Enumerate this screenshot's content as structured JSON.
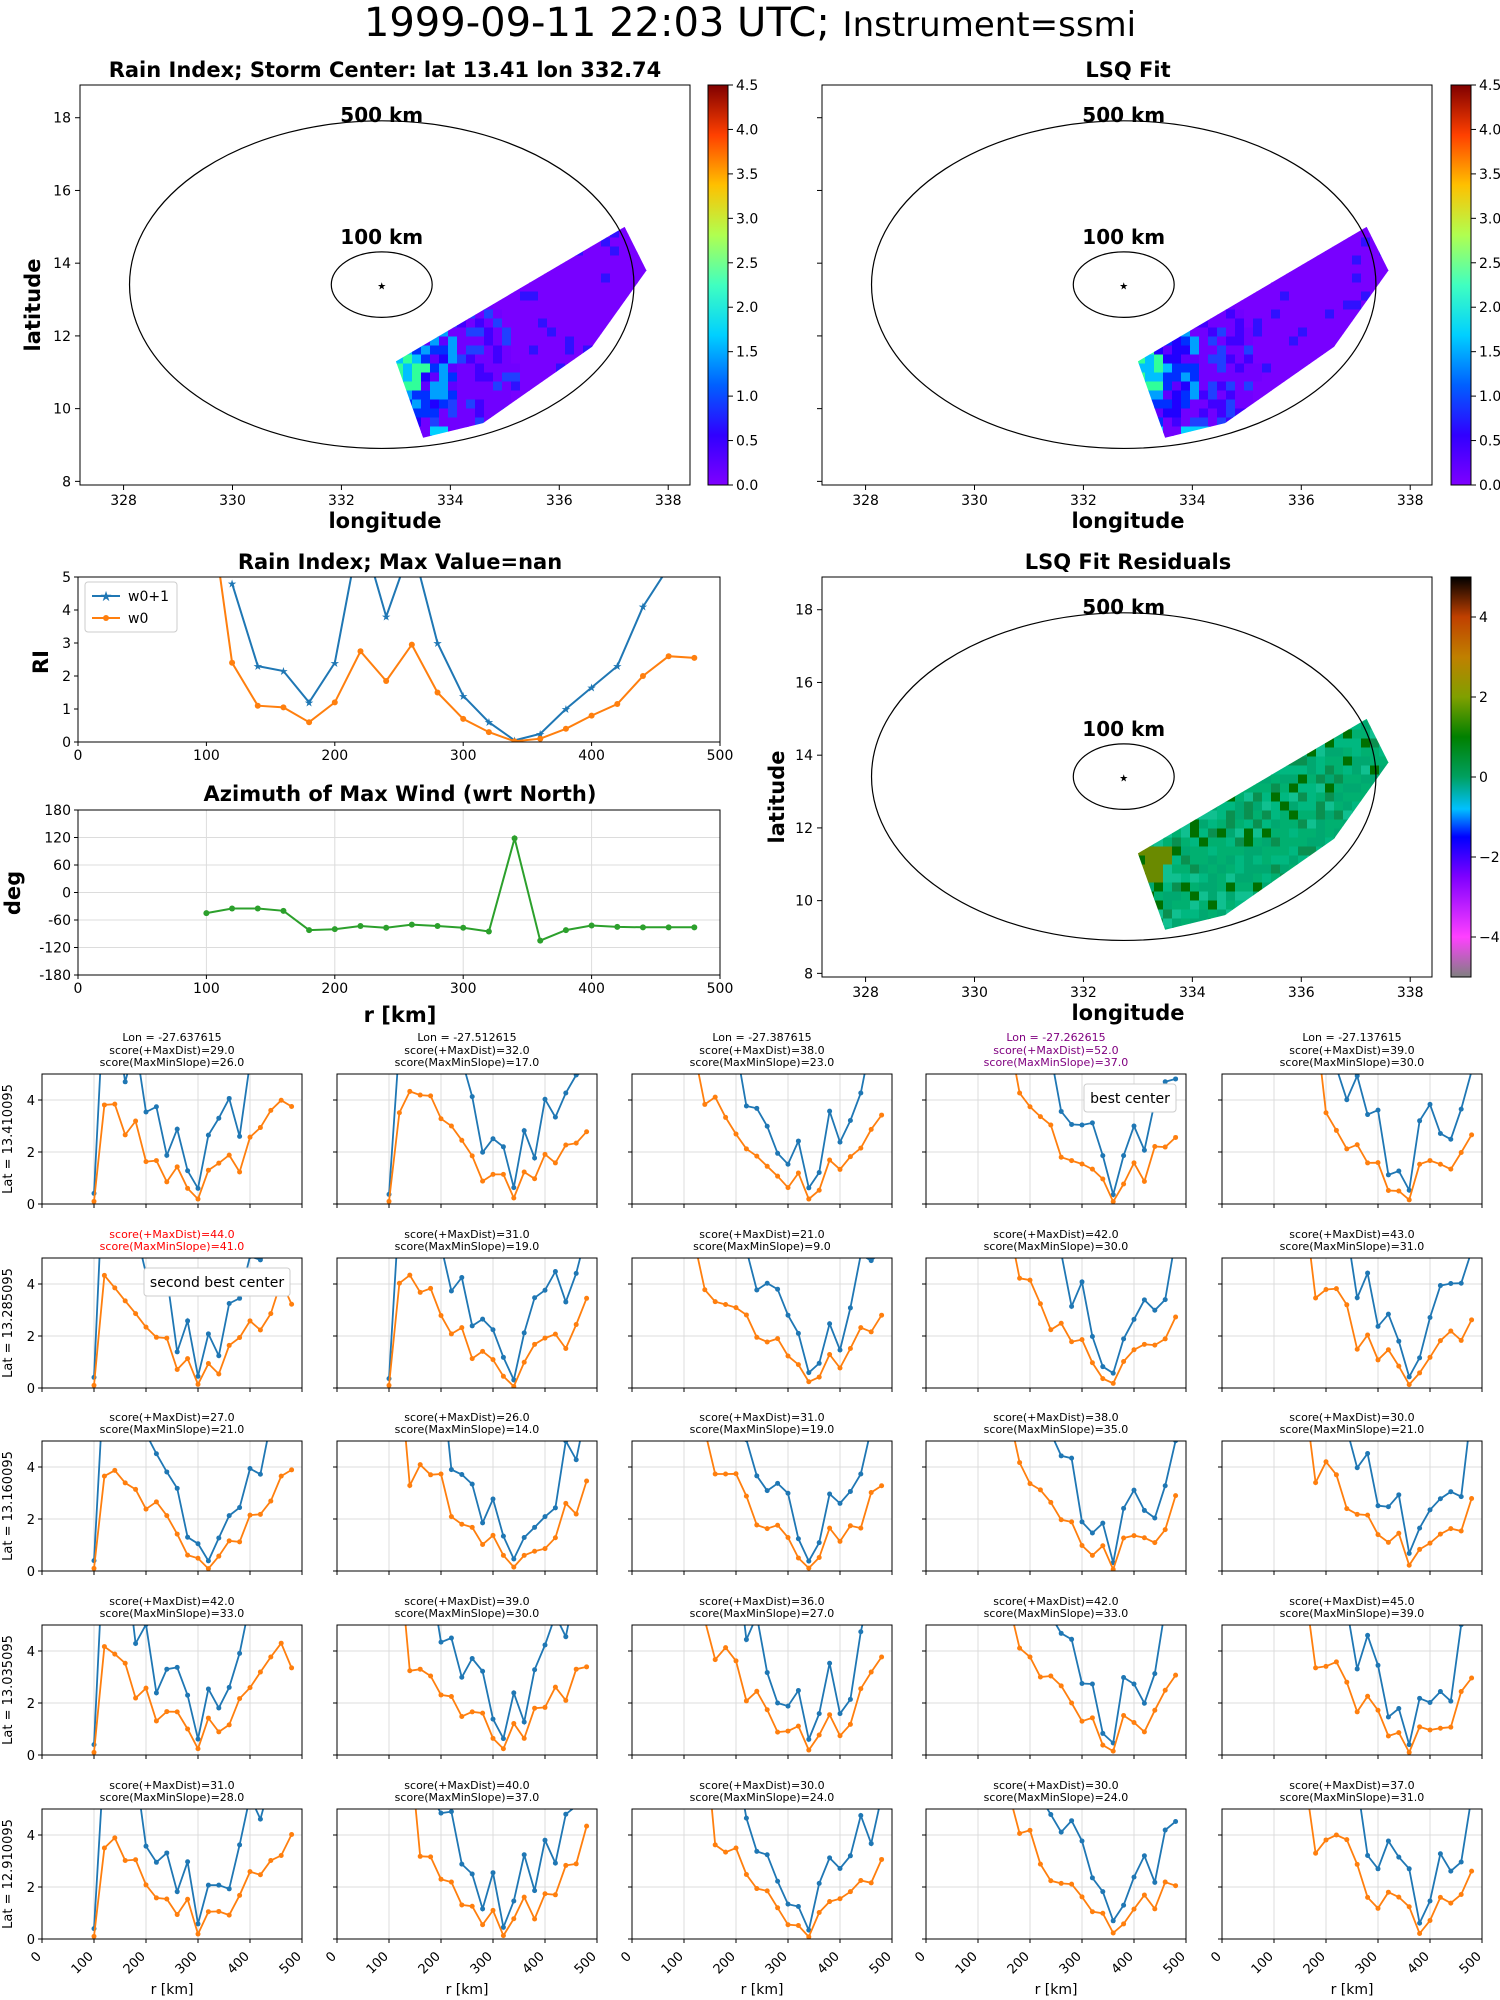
{
  "title": {
    "main": "1999-09-11 22:03 UTC;",
    "instrument": "Instrument=ssmi"
  },
  "maps": {
    "rain": {
      "title": "Rain Index; Storm Center: lat 13.41 lon 332.74",
      "xlabel": "longitude",
      "ylabel": "latitude"
    },
    "lsq": {
      "title": "LSQ Fit",
      "xlabel": "longitude"
    },
    "resid": {
      "title": "LSQ Fit Residuals",
      "xlabel": "longitude",
      "ylabel": "latitude"
    },
    "ring_labels": [
      "500 km",
      "100 km"
    ],
    "center": {
      "lat": 13.41,
      "lon": 332.74
    },
    "xticks": [
      328,
      330,
      332,
      334,
      336,
      338
    ],
    "yticks": [
      8,
      10,
      12,
      14,
      16,
      18
    ],
    "xlim": [
      327.2,
      338.4
    ],
    "ylim": [
      7.9,
      18.9
    ],
    "cbar_rain": {
      "ticks": [
        "0.0",
        "0.5",
        "1.0",
        "1.5",
        "2.0",
        "2.5",
        "3.0",
        "3.5",
        "4.0",
        "4.5"
      ],
      "range": [
        0,
        4.5
      ]
    },
    "cbar_resid": {
      "ticks": [
        "−4",
        "−2",
        "0",
        "2",
        "4"
      ],
      "range": [
        -5,
        5
      ]
    }
  },
  "profile": {
    "title": "Rain Index; Max Value=nan",
    "ylabel": "RI",
    "legend": [
      "w0+1",
      "w0"
    ],
    "colors": {
      "w0p1": "#1f77b4",
      "w0": "#ff7f0e",
      "az": "#2ca02c"
    }
  },
  "azimuth": {
    "title": "Azimuth of Max Wind (wrt North)",
    "ylabel": "deg",
    "xlabel": "r [km]"
  },
  "grid": {
    "xlabel": "r [km]",
    "lons": [
      "Lon = -27.637615",
      "Lon = -27.512615",
      "Lon = -27.387615",
      "Lon = -27.262615",
      "Lon = -27.137615"
    ],
    "lats": [
      "Lat = 13.410095",
      "Lat = 13.285095",
      "Lat = 13.160095",
      "Lat = 13.035095",
      "Lat = 12.910095"
    ],
    "scores": [
      [
        [
          "score(+MaxDist)=29.0",
          "score(MaxMinSlope)=26.0"
        ],
        [
          "score(+MaxDist)=32.0",
          "score(MaxMinSlope)=17.0"
        ],
        [
          "score(+MaxDist)=38.0",
          "score(MaxMinSlope)=23.0"
        ],
        [
          "score(+MaxDist)=52.0",
          "score(MaxMinSlope)=37.0"
        ],
        [
          "score(+MaxDist)=39.0",
          "score(MaxMinSlope)=30.0"
        ]
      ],
      [
        [
          "score(+MaxDist)=44.0",
          "score(MaxMinSlope)=41.0"
        ],
        [
          "score(+MaxDist)=31.0",
          "score(MaxMinSlope)=19.0"
        ],
        [
          "score(+MaxDist)=21.0",
          "score(MaxMinSlope)=9.0"
        ],
        [
          "score(+MaxDist)=42.0",
          "score(MaxMinSlope)=30.0"
        ],
        [
          "score(+MaxDist)=43.0",
          "score(MaxMinSlope)=31.0"
        ]
      ],
      [
        [
          "score(+MaxDist)=27.0",
          "score(MaxMinSlope)=21.0"
        ],
        [
          "score(+MaxDist)=26.0",
          "score(MaxMinSlope)=14.0"
        ],
        [
          "score(+MaxDist)=31.0",
          "score(MaxMinSlope)=19.0"
        ],
        [
          "score(+MaxDist)=38.0",
          "score(MaxMinSlope)=35.0"
        ],
        [
          "score(+MaxDist)=30.0",
          "score(MaxMinSlope)=21.0"
        ]
      ],
      [
        [
          "score(+MaxDist)=42.0",
          "score(MaxMinSlope)=33.0"
        ],
        [
          "score(+MaxDist)=39.0",
          "score(MaxMinSlope)=30.0"
        ],
        [
          "score(+MaxDist)=36.0",
          "score(MaxMinSlope)=27.0"
        ],
        [
          "score(+MaxDist)=42.0",
          "score(MaxMinSlope)=33.0"
        ],
        [
          "score(+MaxDist)=45.0",
          "score(MaxMinSlope)=39.0"
        ]
      ],
      [
        [
          "score(+MaxDist)=31.0",
          "score(MaxMinSlope)=28.0"
        ],
        [
          "score(+MaxDist)=40.0",
          "score(MaxMinSlope)=37.0"
        ],
        [
          "score(+MaxDist)=30.0",
          "score(MaxMinSlope)=24.0"
        ],
        [
          "score(+MaxDist)=30.0",
          "score(MaxMinSlope)=24.0"
        ],
        [
          "score(+MaxDist)=37.0",
          "score(MaxMinSlope)=31.0"
        ]
      ]
    ],
    "best_label": "best center",
    "second_label": "second best center",
    "best_color": "#800080",
    "second_color": "#ff0000"
  },
  "chart_data": [
    {
      "type": "line",
      "title": "Rain Index; Max Value=nan",
      "xlabel": "",
      "ylabel": "RI",
      "xlim": [
        0,
        500
      ],
      "ylim": [
        0,
        5
      ],
      "x": [
        100,
        120,
        140,
        160,
        180,
        200,
        220,
        240,
        260,
        280,
        300,
        320,
        340,
        360,
        380,
        400,
        420,
        440,
        460,
        480
      ],
      "series": [
        {
          "name": "w0+1",
          "values": [
            null,
            4.8,
            2.3,
            2.15,
            1.2,
            2.4,
            6.5,
            3.8,
            6.0,
            3.0,
            1.4,
            0.6,
            0.05,
            0.25,
            1.0,
            1.65,
            2.3,
            4.1,
            5.3,
            null
          ]
        },
        {
          "name": "w0",
          "values": [
            8.0,
            2.4,
            1.1,
            1.05,
            0.6,
            1.2,
            2.75,
            1.85,
            2.95,
            1.5,
            0.7,
            0.3,
            0.02,
            0.1,
            0.4,
            0.8,
            1.15,
            2.0,
            2.6,
            2.55
          ]
        }
      ]
    },
    {
      "type": "line",
      "title": "Azimuth of Max Wind (wrt North)",
      "xlabel": "r [km]",
      "ylabel": "deg",
      "xlim": [
        0,
        500
      ],
      "ylim": [
        -180,
        180
      ],
      "x": [
        100,
        120,
        140,
        160,
        180,
        200,
        220,
        240,
        260,
        280,
        300,
        320,
        340,
        360,
        380,
        400,
        420,
        440,
        460,
        480
      ],
      "series": [
        {
          "name": "",
          "values": [
            -45,
            -35,
            -35,
            -40,
            -82,
            -80,
            -73,
            -77,
            -70,
            -73,
            -77,
            -85,
            118,
            -105,
            -82,
            -72,
            -75,
            -76,
            -76,
            -76
          ]
        }
      ]
    }
  ]
}
